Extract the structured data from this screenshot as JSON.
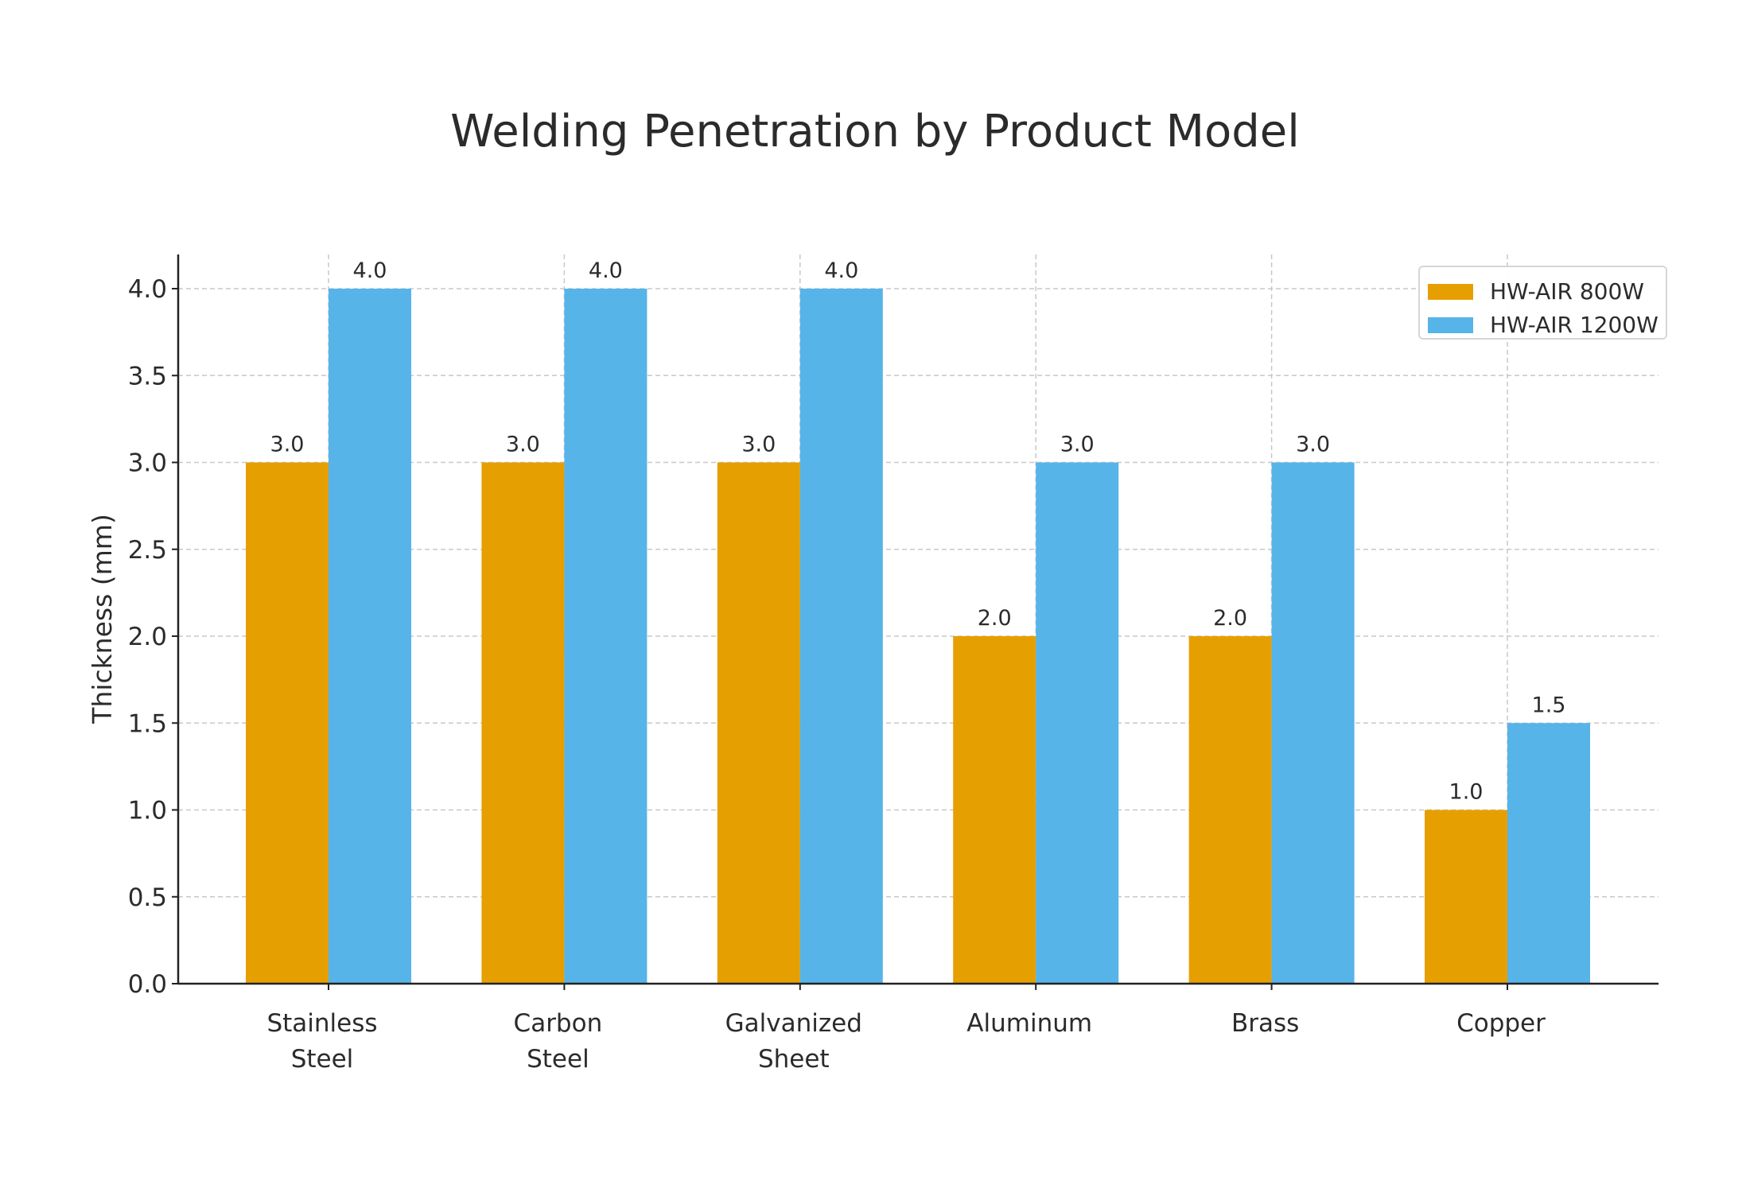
{
  "chart_data": {
    "type": "bar",
    "title": "Welding Penetration by Product Model",
    "xlabel": "",
    "ylabel": "Thickness (mm)",
    "categories": [
      "Stainless\nSteel",
      "Carbon\nSteel",
      "Galvanized\nSheet",
      "Aluminum",
      "Brass",
      "Copper"
    ],
    "series": [
      {
        "name": "HW-AIR 800W",
        "color": "#E69F00",
        "values": [
          3.0,
          3.0,
          3.0,
          2.0,
          2.0,
          1.0
        ]
      },
      {
        "name": "HW-AIR 1200W",
        "color": "#56B4E9",
        "values": [
          4.0,
          4.0,
          4.0,
          3.0,
          3.0,
          1.5
        ]
      }
    ],
    "ylim": [
      0,
      4.2
    ],
    "yticks": [
      "0.0",
      "0.5",
      "1.0",
      "1.5",
      "2.0",
      "2.5",
      "3.0",
      "3.5",
      "4.0"
    ],
    "grid": true,
    "legend": "top-right",
    "data_labels": true
  }
}
